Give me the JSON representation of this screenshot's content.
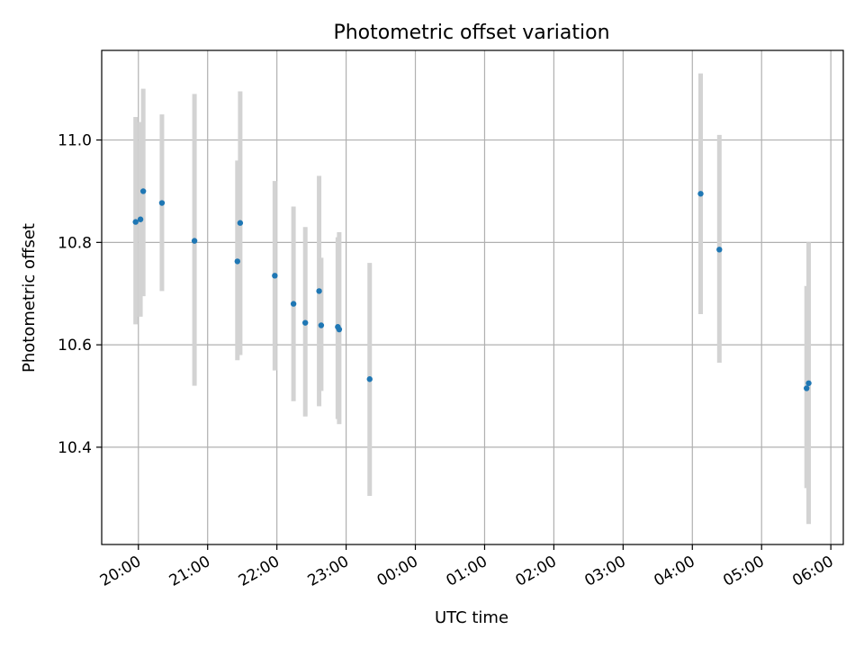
{
  "chart_data": {
    "type": "scatter",
    "title": "Photometric offset variation",
    "xlabel": "UTC time",
    "ylabel": "Photometric offset",
    "grid": true,
    "x_tick_labels": [
      "20:00",
      "21:00",
      "22:00",
      "23:00",
      "00:00",
      "01:00",
      "02:00",
      "03:00",
      "04:00",
      "05:00",
      "06:00"
    ],
    "x_tick_hours": [
      20,
      21,
      22,
      23,
      24,
      25,
      26,
      27,
      28,
      29,
      30
    ],
    "x_unit": "hours (UTC, continuing past midnight)",
    "xlim": [
      19.47,
      30.18
    ],
    "y_ticks": [
      10.4,
      10.6,
      10.8,
      11.0
    ],
    "y_tick_labels": [
      "10.4",
      "10.6",
      "10.8",
      "11.0"
    ],
    "ylim": [
      10.21,
      11.175
    ],
    "marker_color": "#1f77b4",
    "errorbar_color": "#d3d3d3",
    "points": [
      {
        "x": 19.96,
        "y": 10.84,
        "low": 10.64,
        "high": 11.045
      },
      {
        "x": 20.03,
        "y": 10.845,
        "low": 10.655,
        "high": 11.035
      },
      {
        "x": 20.07,
        "y": 10.9,
        "low": 10.695,
        "high": 11.1
      },
      {
        "x": 20.34,
        "y": 10.877,
        "low": 10.705,
        "high": 11.05
      },
      {
        "x": 20.81,
        "y": 10.803,
        "low": 10.52,
        "high": 11.09
      },
      {
        "x": 21.43,
        "y": 10.763,
        "low": 10.57,
        "high": 10.96
      },
      {
        "x": 21.47,
        "y": 10.838,
        "low": 10.58,
        "high": 11.095
      },
      {
        "x": 21.97,
        "y": 10.735,
        "low": 10.55,
        "high": 10.92
      },
      {
        "x": 22.24,
        "y": 10.68,
        "low": 10.49,
        "high": 10.87
      },
      {
        "x": 22.41,
        "y": 10.643,
        "low": 10.46,
        "high": 10.83
      },
      {
        "x": 22.61,
        "y": 10.705,
        "low": 10.48,
        "high": 10.93
      },
      {
        "x": 22.64,
        "y": 10.638,
        "low": 10.51,
        "high": 10.77
      },
      {
        "x": 22.88,
        "y": 10.635,
        "low": 10.455,
        "high": 10.81
      },
      {
        "x": 22.9,
        "y": 10.63,
        "low": 10.445,
        "high": 10.82
      },
      {
        "x": 23.34,
        "y": 10.533,
        "low": 10.305,
        "high": 10.76
      },
      {
        "x": 28.12,
        "y": 10.895,
        "low": 10.66,
        "high": 11.13
      },
      {
        "x": 28.39,
        "y": 10.786,
        "low": 10.565,
        "high": 11.01
      },
      {
        "x": 29.65,
        "y": 10.515,
        "low": 10.32,
        "high": 10.715
      },
      {
        "x": 29.68,
        "y": 10.525,
        "low": 10.25,
        "high": 10.8
      }
    ]
  }
}
